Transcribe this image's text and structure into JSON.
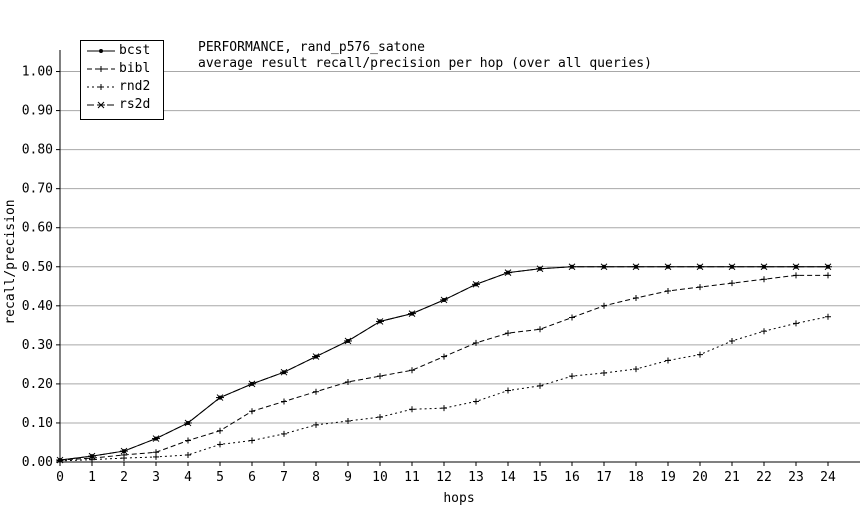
{
  "chart_data": {
    "type": "line",
    "title": "PERFORMANCE, rand_p576_satone",
    "subtitle": "average result recall/precision per hop (over all queries)",
    "xlabel": "hops",
    "ylabel": "recall/precision",
    "xlim": [
      0,
      24
    ],
    "ylim": [
      0,
      1.05
    ],
    "grid": "horizontal",
    "legend_position": "top-left",
    "x": [
      0,
      1,
      2,
      3,
      4,
      5,
      6,
      7,
      8,
      9,
      10,
      11,
      12,
      13,
      14,
      15,
      16,
      17,
      18,
      19,
      20,
      21,
      22,
      23,
      24
    ],
    "x_ticks": [
      "0",
      "1",
      "2",
      "3",
      "4",
      "5",
      "6",
      "7",
      "8",
      "9",
      "10",
      "11",
      "12",
      "13",
      "14",
      "15",
      "16",
      "17",
      "18",
      "19",
      "20",
      "21",
      "22",
      "23",
      "24"
    ],
    "y_ticks": [
      {
        "value": 0.0,
        "label": "0.00"
      },
      {
        "value": 0.1,
        "label": "0.10"
      },
      {
        "value": 0.2,
        "label": "0.20"
      },
      {
        "value": 0.3,
        "label": "0.30"
      },
      {
        "value": 0.4,
        "label": "0.40"
      },
      {
        "value": 0.5,
        "label": "0.50"
      },
      {
        "value": 0.6,
        "label": "0.60"
      },
      {
        "value": 0.7,
        "label": "0.70"
      },
      {
        "value": 0.8,
        "label": "0.80"
      },
      {
        "value": 0.9,
        "label": "0.90"
      },
      {
        "value": 1.0,
        "label": "1.00"
      }
    ],
    "series": [
      {
        "name": "bcst",
        "marker": "dot",
        "dash": "",
        "values": [
          0.005,
          0.015,
          0.028,
          0.06,
          0.1,
          0.165,
          0.2,
          0.23,
          0.27,
          0.31,
          0.36,
          0.38,
          0.415,
          0.455,
          0.485,
          0.495,
          0.5,
          0.5,
          0.5,
          0.5,
          0.5,
          0.5,
          0.5,
          0.5,
          0.5
        ]
      },
      {
        "name": "bibl",
        "marker": "plus",
        "dash": "5,3",
        "values": [
          0.005,
          0.01,
          0.018,
          0.025,
          0.055,
          0.08,
          0.13,
          0.155,
          0.18,
          0.205,
          0.22,
          0.235,
          0.27,
          0.305,
          0.33,
          0.34,
          0.37,
          0.4,
          0.42,
          0.438,
          0.448,
          0.458,
          0.468,
          0.478,
          0.478
        ]
      },
      {
        "name": "rnd2",
        "marker": "plus",
        "dash": "2,3",
        "values": [
          0.003,
          0.006,
          0.01,
          0.013,
          0.018,
          0.045,
          0.055,
          0.072,
          0.095,
          0.105,
          0.115,
          0.135,
          0.138,
          0.155,
          0.183,
          0.195,
          0.22,
          0.228,
          0.238,
          0.26,
          0.275,
          0.31,
          0.335,
          0.355,
          0.372
        ]
      },
      {
        "name": "rs2d",
        "marker": "star",
        "dash": "7,3",
        "values": [
          0.005,
          0.015,
          0.028,
          0.06,
          0.1,
          0.165,
          0.2,
          0.23,
          0.27,
          0.31,
          0.36,
          0.38,
          0.415,
          0.455,
          0.485,
          0.495,
          0.5,
          0.5,
          0.5,
          0.5,
          0.5,
          0.5,
          0.5,
          0.5,
          0.5
        ]
      }
    ]
  }
}
